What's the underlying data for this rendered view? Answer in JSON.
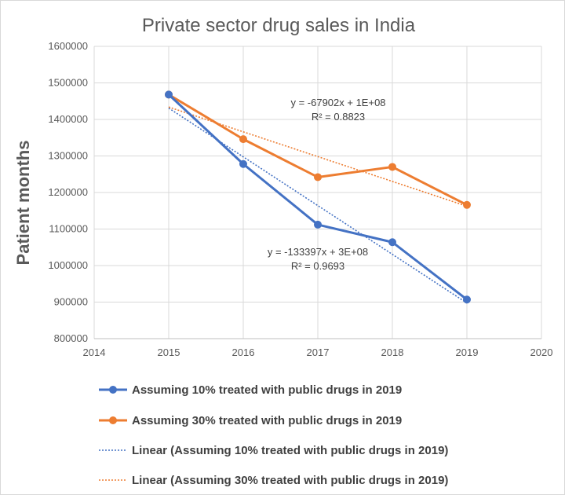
{
  "chart_data": {
    "type": "line",
    "title": "Private sector drug sales in India",
    "ylabel": "Patient months",
    "xlabel": "",
    "xlim": [
      2014,
      2020
    ],
    "ylim": [
      800000,
      1600000
    ],
    "x_ticks": [
      2014,
      2015,
      2016,
      2017,
      2018,
      2019,
      2020
    ],
    "y_ticks": [
      800000,
      900000,
      1000000,
      1100000,
      1200000,
      1300000,
      1400000,
      1500000,
      1600000
    ],
    "x": [
      2015,
      2016,
      2017,
      2018,
      2019
    ],
    "grid": true,
    "legend_position": "bottom",
    "series": [
      {
        "name": "Assuming 10% treated with public drugs in 2019",
        "values": [
          1468000,
          1278000,
          1112000,
          1064000,
          907000
        ],
        "color": "#4472c4",
        "style": "solid"
      },
      {
        "name": "Assuming 30% treated with public drugs in 2019",
        "values": [
          1468000,
          1346000,
          1242000,
          1270000,
          1166000
        ],
        "color": "#ed7d31",
        "style": "solid"
      }
    ],
    "trendlines": [
      {
        "name": "Linear (Assuming 10% treated with public drugs in 2019)",
        "slope": -133397,
        "y_at_2015": 1431000,
        "equation": "y = -133397x + 3E+08",
        "r2": "R² = 0.9693",
        "color": "#4472c4",
        "style": "dotted"
      },
      {
        "name": "Linear (Assuming 30% treated with public drugs in 2019)",
        "slope": -67902,
        "y_at_2015": 1434000,
        "equation": "y = -67902x + 1E+08",
        "r2": "R² = 0.8823",
        "color": "#ed7d31",
        "style": "dotted"
      }
    ]
  }
}
